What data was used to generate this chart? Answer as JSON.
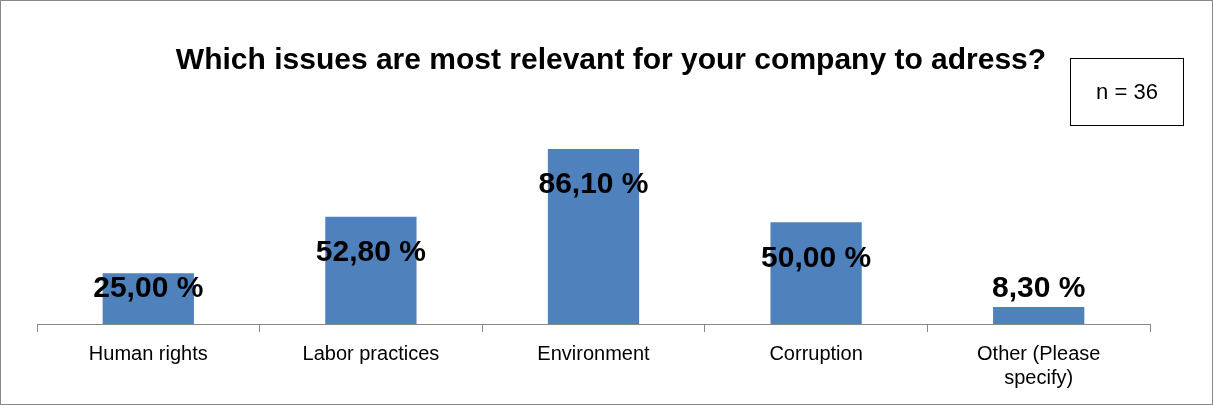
{
  "chart_data": {
    "type": "bar",
    "title": "Which issues are most relevant for your company to adress?",
    "categories": [
      "Human rights",
      "Labor practices",
      "Environment",
      "Corruption",
      "Other (Please specify)"
    ],
    "values": [
      25,
      52.8,
      86.1,
      50,
      8.3
    ],
    "value_labels": [
      "25,00 %",
      "52,80 %",
      "86,10 %",
      "50,00 %",
      "8,30 %"
    ],
    "color": "#4f81bd",
    "annotations": [
      "n = 36"
    ]
  }
}
